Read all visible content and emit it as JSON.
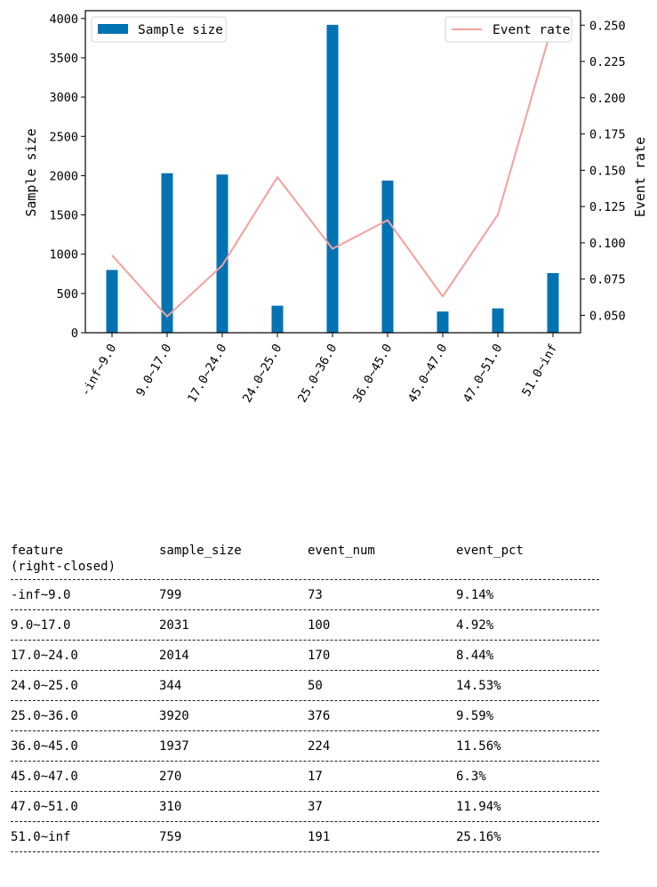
{
  "colors": {
    "bar": "#0173b2",
    "line": "#f4a09d",
    "axis": "#000000"
  },
  "chart_data": {
    "type": "bar",
    "categories": [
      "-inf~9.0",
      "9.0~17.0",
      "17.0~24.0",
      "24.0~25.0",
      "25.0~36.0",
      "36.0~45.0",
      "45.0~47.0",
      "47.0~51.0",
      "51.0~inf"
    ],
    "series": [
      {
        "name": "Sample size",
        "type": "bar",
        "axis": "left",
        "values": [
          799,
          2031,
          2014,
          344,
          3920,
          1937,
          270,
          310,
          759
        ]
      },
      {
        "name": "Event rate",
        "type": "line",
        "axis": "right",
        "values": [
          0.0914,
          0.0492,
          0.0844,
          0.1453,
          0.0959,
          0.1156,
          0.063,
          0.1194,
          0.2516
        ]
      }
    ],
    "ylabel": "Sample size",
    "y2label": "Event rate",
    "ylim": [
      0,
      4100
    ],
    "y2lim": [
      0.038,
      0.26
    ],
    "yticks": [
      "0",
      "500",
      "1000",
      "1500",
      "2000",
      "2500",
      "3000",
      "3500",
      "4000"
    ],
    "y2ticks": [
      "0.050",
      "0.075",
      "0.100",
      "0.125",
      "0.150",
      "0.175",
      "0.200",
      "0.225",
      "0.250"
    ],
    "grid": false,
    "legend": {
      "bar_placement": "upper-left",
      "line_placement": "upper-right"
    }
  },
  "table": {
    "headers": [
      "feature\n(right-closed)",
      "sample_size",
      "event_num",
      "event_pct"
    ],
    "rows": [
      [
        "-inf~9.0",
        "799",
        "73",
        "9.14%"
      ],
      [
        "9.0~17.0",
        "2031",
        "100",
        "4.92%"
      ],
      [
        "17.0~24.0",
        "2014",
        "170",
        "8.44%"
      ],
      [
        "24.0~25.0",
        "344",
        "50",
        "14.53%"
      ],
      [
        "25.0~36.0",
        "3920",
        "376",
        "9.59%"
      ],
      [
        "36.0~45.0",
        "1937",
        "224",
        "11.56%"
      ],
      [
        "45.0~47.0",
        "270",
        "17",
        "6.3%"
      ],
      [
        "47.0~51.0",
        "310",
        "37",
        "11.94%"
      ],
      [
        "51.0~inf",
        "759",
        "191",
        "25.16%"
      ]
    ]
  }
}
